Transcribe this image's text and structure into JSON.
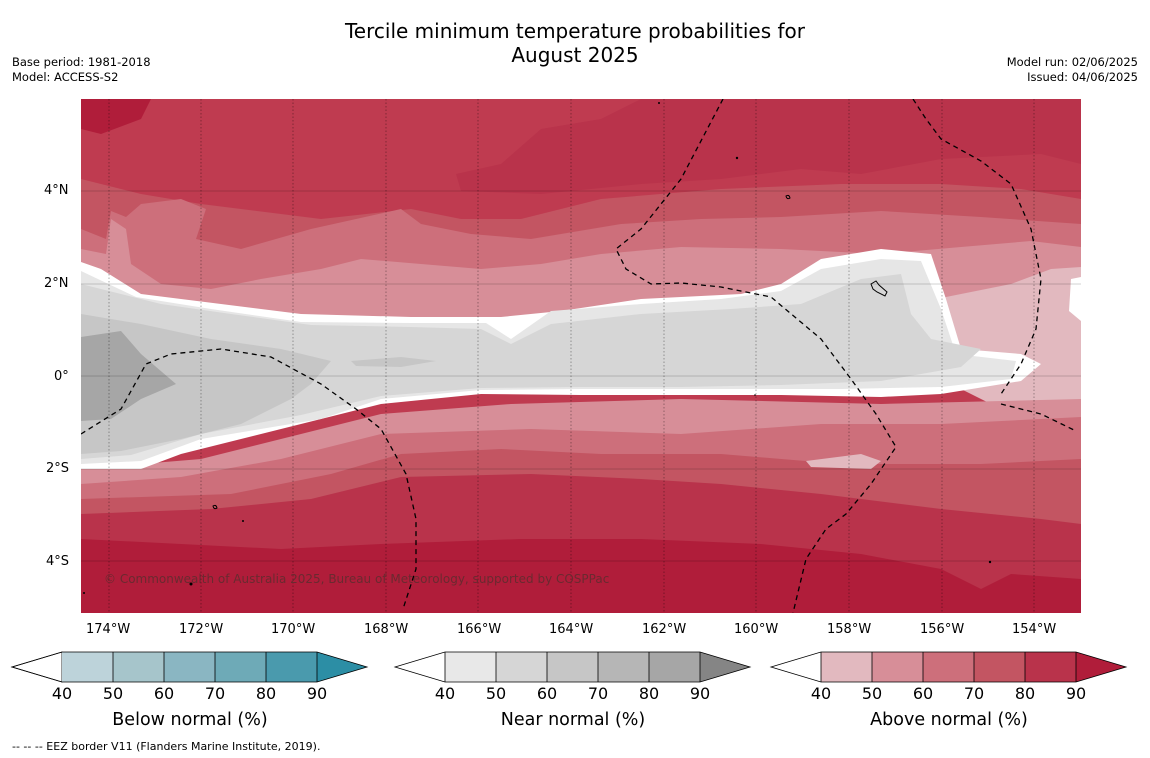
{
  "title_line1": "Tercile minimum temperature probabilities for",
  "title_line2": "August 2025",
  "base_period": "Base period: 1981-2018",
  "model": "Model: ACCESS-S2",
  "model_run": "Model run: 02/06/2025",
  "issued": "Issued: 04/06/2025",
  "lon_ticks": [
    "174°W",
    "172°W",
    "170°W",
    "168°W",
    "166°W",
    "164°W",
    "162°W",
    "160°W",
    "158°W",
    "156°W",
    "154°W"
  ],
  "lat_ticks": [
    "4°N",
    "2°N",
    "0°",
    "2°S",
    "4°S"
  ],
  "copyright": "© Commonwealth of Australia 2025, Bureau of Meteorology, supported by COSPPac",
  "colorbars": [
    {
      "title": "Below normal (%)",
      "ticks": [
        "40",
        "50",
        "60",
        "70",
        "80",
        "90"
      ],
      "colors": [
        "#bdd3da",
        "#a6c5cb",
        "#8ab6c2",
        "#6eaab7",
        "#4a9aad",
        "#2c8ea5"
      ]
    },
    {
      "title": "Near normal (%)",
      "ticks": [
        "40",
        "50",
        "60",
        "70",
        "80",
        "90"
      ],
      "colors": [
        "#e8e8e8",
        "#d6d6d6",
        "#c6c6c6",
        "#b6b6b6",
        "#a6a6a6",
        "#858585"
      ]
    },
    {
      "title": "Above normal (%)",
      "ticks": [
        "40",
        "50",
        "60",
        "70",
        "80",
        "90"
      ],
      "colors": [
        "#e2b9bf",
        "#d78e98",
        "#cd6f7b",
        "#c35562",
        "#b9334b",
        "#b01d3a"
      ]
    }
  ],
  "footnote": "--  --  -- EEZ border V11 (Flanders Marine Institute, 2019)."
}
